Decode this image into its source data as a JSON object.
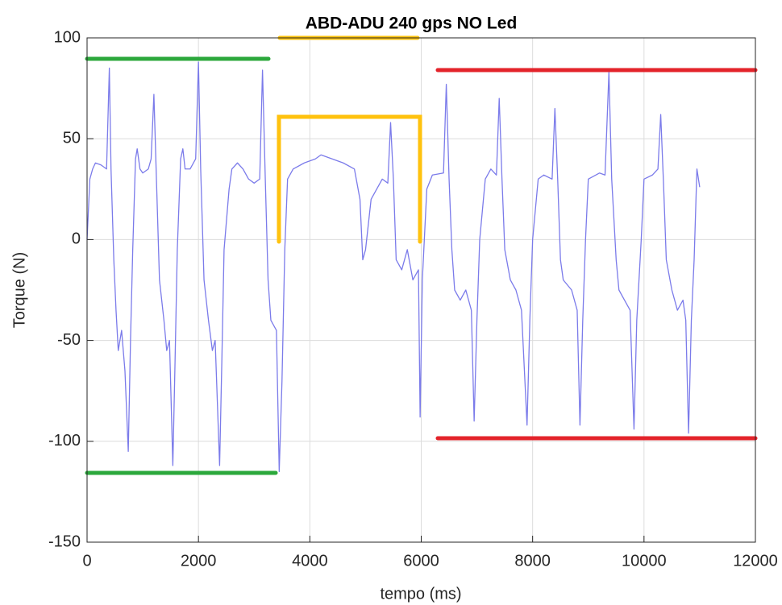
{
  "chart_data": {
    "type": "line",
    "title": "ABD-ADU 240 gps  NO Led",
    "xlabel": "tempo (ms)",
    "ylabel": "Torque (N)",
    "x": [
      0,
      50,
      100,
      150,
      250,
      350,
      400,
      430,
      480,
      520,
      560,
      620,
      680,
      740,
      780,
      820,
      870,
      900,
      950,
      1000,
      1100,
      1150,
      1200,
      1240,
      1300,
      1380,
      1430,
      1480,
      1540,
      1580,
      1620,
      1680,
      1720,
      1760,
      1850,
      1950,
      2000,
      2040,
      2100,
      2180,
      2250,
      2300,
      2380,
      2420,
      2460,
      2550,
      2600,
      2700,
      2800,
      2900,
      3000,
      3100,
      3150,
      3200,
      3250,
      3300,
      3400,
      3450,
      3500,
      3550,
      3600,
      3700,
      3900,
      4100,
      4200,
      4400,
      4600,
      4800,
      4900,
      4950,
      5000,
      5100,
      5300,
      5400,
      5450,
      5500,
      5550,
      5650,
      5750,
      5850,
      5950,
      5980,
      6020,
      6100,
      6200,
      6400,
      6450,
      6500,
      6550,
      6600,
      6700,
      6800,
      6900,
      6950,
      7000,
      7050,
      7150,
      7250,
      7350,
      7400,
      7450,
      7500,
      7600,
      7700,
      7800,
      7900,
      7950,
      8000,
      8100,
      8200,
      8350,
      8400,
      8450,
      8500,
      8550,
      8700,
      8800,
      8850,
      8900,
      8950,
      9000,
      9200,
      9300,
      9370,
      9420,
      9500,
      9550,
      9650,
      9750,
      9820,
      9870,
      9950,
      10000,
      10150,
      10250,
      10300,
      10350,
      10400,
      10500,
      10600,
      10700,
      10750,
      10800,
      10850,
      10900,
      10950,
      11000
    ],
    "values": [
      0,
      30,
      35,
      38,
      37,
      35,
      85,
      35,
      -10,
      -35,
      -55,
      -45,
      -65,
      -105,
      -50,
      -5,
      40,
      45,
      35,
      33,
      35,
      40,
      72,
      35,
      -20,
      -40,
      -55,
      -50,
      -112,
      -60,
      -5,
      40,
      45,
      35,
      35,
      40,
      88,
      35,
      -20,
      -40,
      -55,
      -50,
      -112,
      -60,
      -5,
      25,
      35,
      38,
      35,
      30,
      28,
      30,
      84,
      30,
      -20,
      -40,
      -45,
      -115,
      -70,
      -5,
      30,
      35,
      38,
      40,
      42,
      40,
      38,
      35,
      20,
      -10,
      -5,
      20,
      30,
      28,
      58,
      30,
      -10,
      -15,
      -5,
      -20,
      -15,
      -88,
      -20,
      25,
      32,
      33,
      77,
      30,
      -5,
      -25,
      -30,
      -25,
      -35,
      -90,
      -40,
      0,
      30,
      35,
      32,
      70,
      30,
      -5,
      -20,
      -25,
      -35,
      -92,
      -40,
      0,
      30,
      32,
      30,
      65,
      30,
      -10,
      -20,
      -25,
      -35,
      -92,
      -40,
      0,
      30,
      33,
      32,
      83,
      30,
      -10,
      -25,
      -30,
      -35,
      -94,
      -40,
      0,
      30,
      32,
      35,
      62,
      28,
      -10,
      -25,
      -35,
      -30,
      -40,
      -96,
      -40,
      -10,
      35,
      26
    ],
    "color": "#7b7bea",
    "xlim": [
      0,
      12000
    ],
    "xticks": [
      0,
      2000,
      4000,
      6000,
      8000,
      10000,
      12000
    ],
    "ylim": [
      -150,
      100
    ],
    "yticks": [
      -150,
      -100,
      -50,
      0,
      50,
      100
    ],
    "grid": true
  }
}
